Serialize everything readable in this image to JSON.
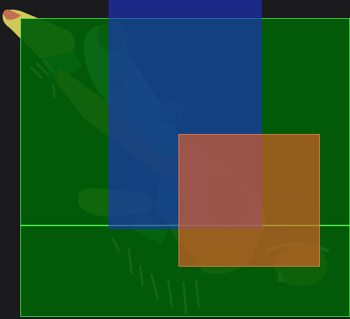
{
  "scene": {
    "background": "#1b1b1d",
    "character": "fighter-sprite-aerial-kick",
    "colors": {
      "hurtbox": "#005f08",
      "hurtbox_outline": "#50ff50",
      "pushbox": "#1e32c8",
      "hitbox": "#eb5f28",
      "skin": "#d9954f",
      "boot": "#d2c85a",
      "hair": "#3a2418"
    }
  }
}
